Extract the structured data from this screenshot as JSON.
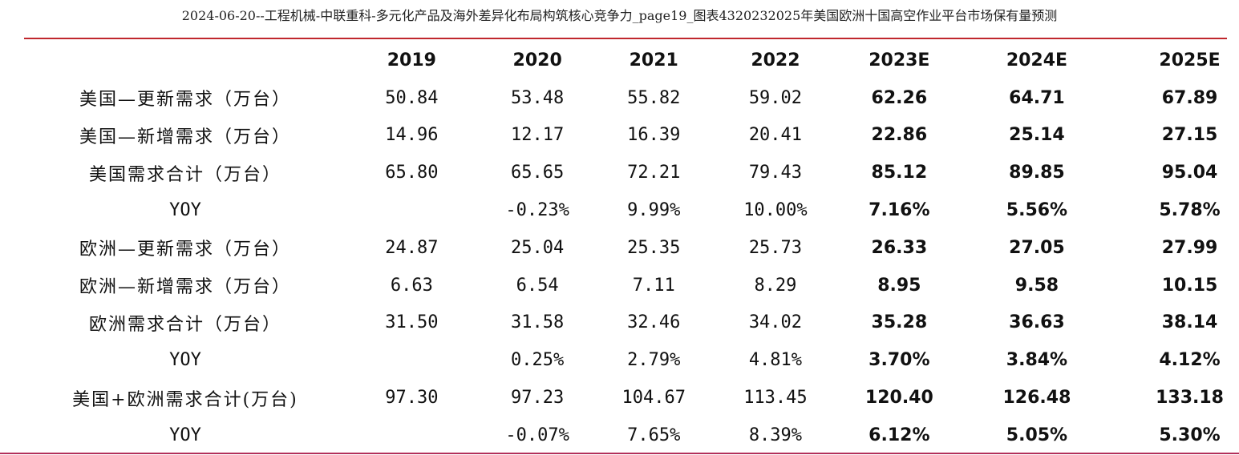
{
  "title": "2024-06-20--工程机械-中联重科-多元化产品及海外差异化布局构筑核心竞争力_page19_图表4320232025年美国欧洲十国高空作业平台市场保有量预测",
  "table": {
    "columns": [
      "",
      "2019",
      "2020",
      "2021",
      "2022",
      "2023E",
      "2024E",
      "2025E"
    ],
    "rows": [
      {
        "label": "美国—更新需求（万台）",
        "values": [
          "50.84",
          "53.48",
          "55.82",
          "59.02",
          "62.26",
          "64.71",
          "67.89"
        ]
      },
      {
        "label": "美国—新增需求（万台）",
        "values": [
          "14.96",
          "12.17",
          "16.39",
          "20.41",
          "22.86",
          "25.14",
          "27.15"
        ]
      },
      {
        "label": "美国需求合计（万台）",
        "values": [
          "65.80",
          "65.65",
          "72.21",
          "79.43",
          "85.12",
          "89.85",
          "95.04"
        ]
      },
      {
        "label": "YOY",
        "values": [
          "",
          "-0.23%",
          "9.99%",
          "10.00%",
          "7.16%",
          "5.56%",
          "5.78%"
        ]
      },
      {
        "label": "欧洲—更新需求（万台）",
        "values": [
          "24.87",
          "25.04",
          "25.35",
          "25.73",
          "26.33",
          "27.05",
          "27.99"
        ]
      },
      {
        "label": "欧洲—新增需求（万台）",
        "values": [
          "6.63",
          "6.54",
          "7.11",
          "8.29",
          "8.95",
          "9.58",
          "10.15"
        ]
      },
      {
        "label": "欧洲需求合计（万台）",
        "values": [
          "31.50",
          "31.58",
          "32.46",
          "34.02",
          "35.28",
          "36.63",
          "38.14"
        ]
      },
      {
        "label": "YOY",
        "values": [
          "",
          "0.25%",
          "2.79%",
          "4.81%",
          "3.70%",
          "3.84%",
          "4.12%"
        ]
      },
      {
        "label": "美国+欧洲需求合计(万台)",
        "values": [
          "97.30",
          "97.23",
          "104.67",
          "113.45",
          "120.40",
          "126.48",
          "133.18"
        ]
      },
      {
        "label": "YOY",
        "values": [
          "",
          "-0.07%",
          "7.65%",
          "8.39%",
          "6.12%",
          "5.05%",
          "5.30%"
        ]
      }
    ]
  },
  "colors": {
    "top_rule": "#c0272d",
    "bottom_rule": "#b32f5a"
  }
}
